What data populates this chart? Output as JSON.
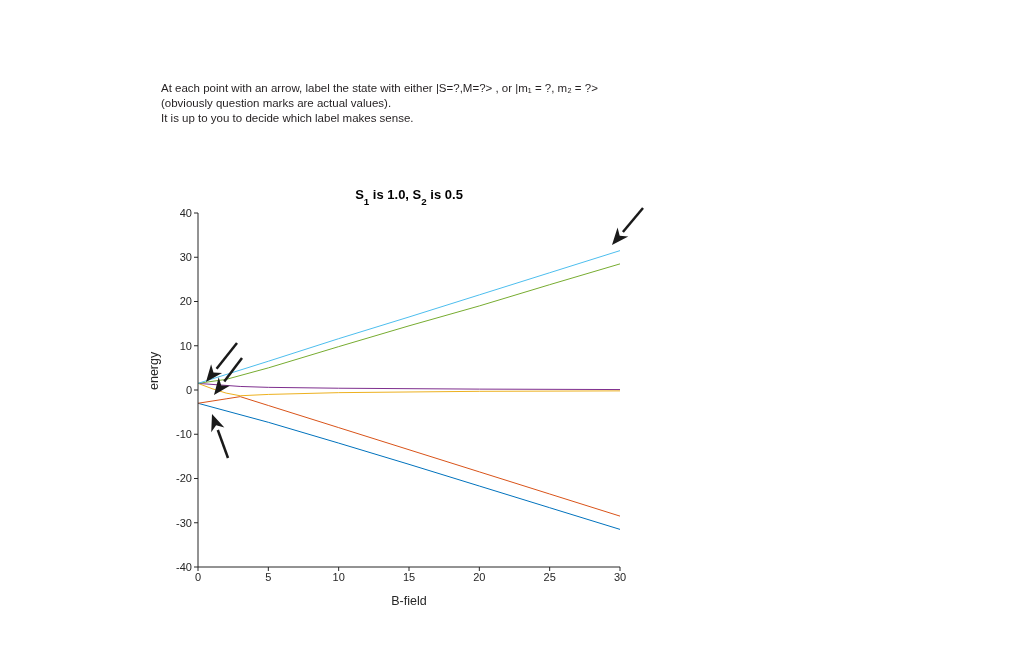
{
  "chart_data": {
    "type": "line",
    "title": "S$_{1}$ is 1.0, S$_{2}$ is 0.5",
    "xlabel": "B-field",
    "ylabel": "energy",
    "annotations": [
      "At each point with an arrow, label the state with either |S=?,M=?> , or |m₁ = ?, m₂ = ?>",
      "(obviously question marks are actual values).",
      "It is up to you to decide which label makes sense."
    ],
    "xlim": [
      0,
      30
    ],
    "xticks": [
      0,
      5,
      10,
      15,
      20,
      25,
      30
    ],
    "ylim": [
      -40,
      40
    ],
    "yticks": [
      -40,
      -30,
      -20,
      -10,
      0,
      10,
      20,
      30,
      40
    ],
    "series": [
      {
        "color": "#0072bd",
        "x": [
          0,
          5,
          10,
          15,
          20,
          25,
          30
        ],
        "values": [
          -3,
          -7.3,
          -12,
          -16.8,
          -21.7,
          -26.6,
          -31.5
        ]
      },
      {
        "color": "#d95319",
        "x": [
          0,
          1,
          2,
          3,
          5,
          10,
          15,
          20,
          25,
          30
        ],
        "values": [
          -3,
          -2.5,
          -2,
          -1.5,
          -3.5,
          -8.5,
          -13.5,
          -18.5,
          -23.5,
          -28.5
        ]
      },
      {
        "color": "#edb120",
        "x": [
          0,
          1,
          2,
          3,
          5,
          10,
          20,
          30
        ],
        "values": [
          1.5,
          0.3,
          -0.7,
          -1.3,
          -1,
          -0.6,
          -0.3,
          -0.2
        ]
      },
      {
        "color": "#7e2f8e",
        "x": [
          0,
          3,
          5,
          10,
          20,
          30
        ],
        "values": [
          1.5,
          0.8,
          0.6,
          0.4,
          0.2,
          0.1
        ]
      },
      {
        "color": "#77ac30",
        "x": [
          0,
          2,
          5,
          10,
          15,
          20,
          25,
          30
        ],
        "values": [
          1.5,
          2.4,
          5,
          9.8,
          14.5,
          19,
          23.8,
          28.5
        ]
      },
      {
        "color": "#4dbeee",
        "x": [
          0,
          5,
          10,
          15,
          20,
          25,
          30
        ],
        "values": [
          1.5,
          6.5,
          11.6,
          16.5,
          21.5,
          26.5,
          31.5
        ]
      }
    ]
  }
}
